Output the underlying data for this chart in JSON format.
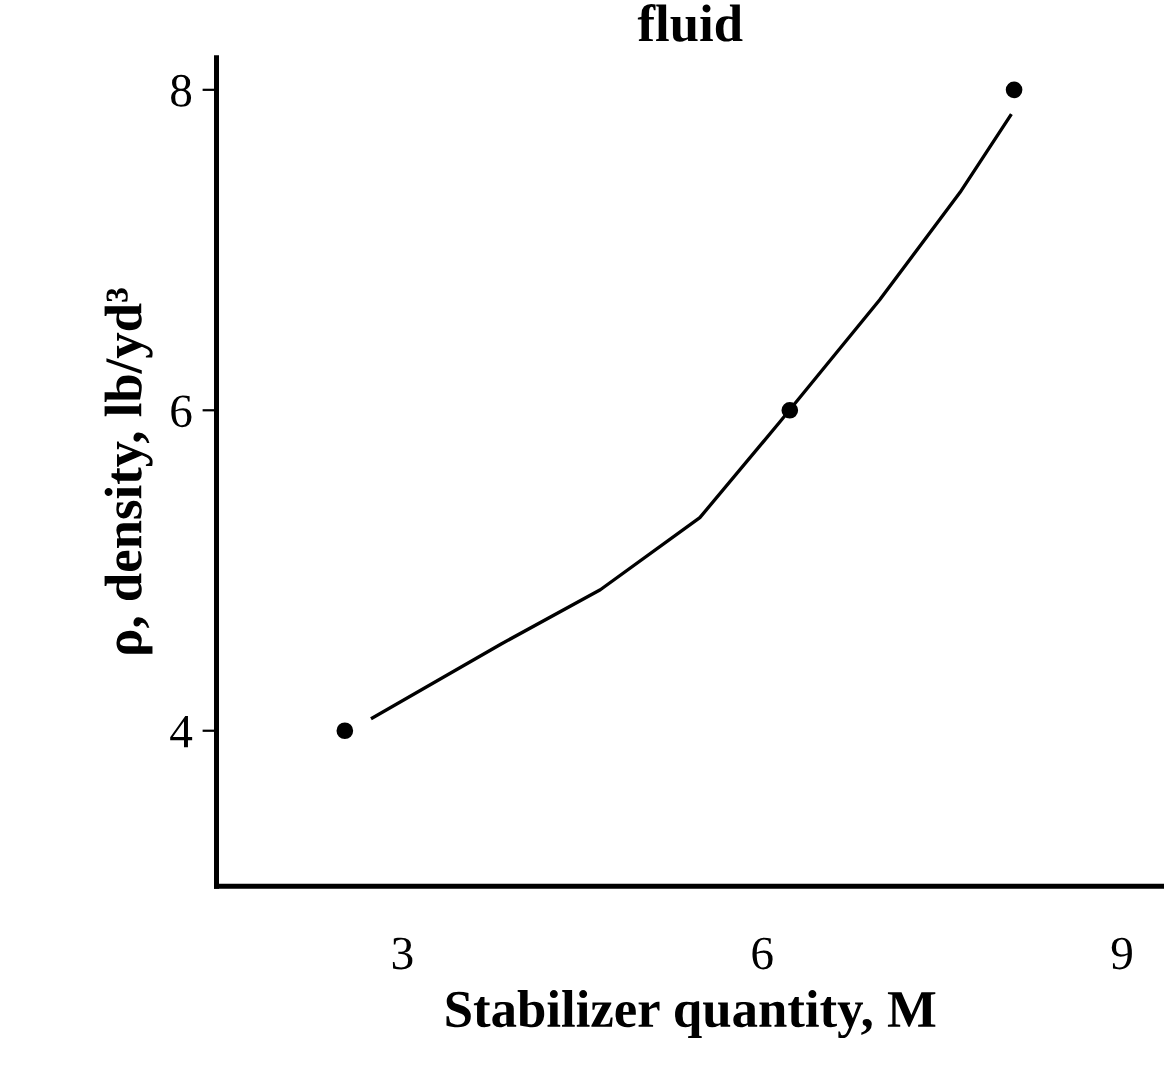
{
  "chart_data": {
    "type": "scatter",
    "title": "fluid",
    "xlabel": "Stabilizer quantity, M",
    "ylabel": "ρ, density, lb/yd³",
    "series": [
      {
        "type": "line",
        "marker": "none",
        "color": "#000000",
        "x": [
          2.75,
          3.82,
          4.65,
          5.48,
          6.15,
          6.98,
          7.65,
          8.07
        ],
        "values": [
          4.08,
          4.54,
          4.88,
          5.33,
          5.93,
          6.69,
          7.36,
          7.84
        ]
      },
      {
        "marker": "circle",
        "color": "#000000",
        "x": [
          2.52,
          6.23,
          8.1
        ],
        "values": [
          4,
          6,
          8
        ]
      }
    ],
    "line_style": "solid",
    "legend": false,
    "xlim": [
      1.45,
      9.35
    ],
    "xticks": [
      3,
      6,
      9
    ],
    "ylim": [
      3.03,
      8.2
    ],
    "yticks": [
      4,
      6,
      8
    ],
    "grid": false
  }
}
